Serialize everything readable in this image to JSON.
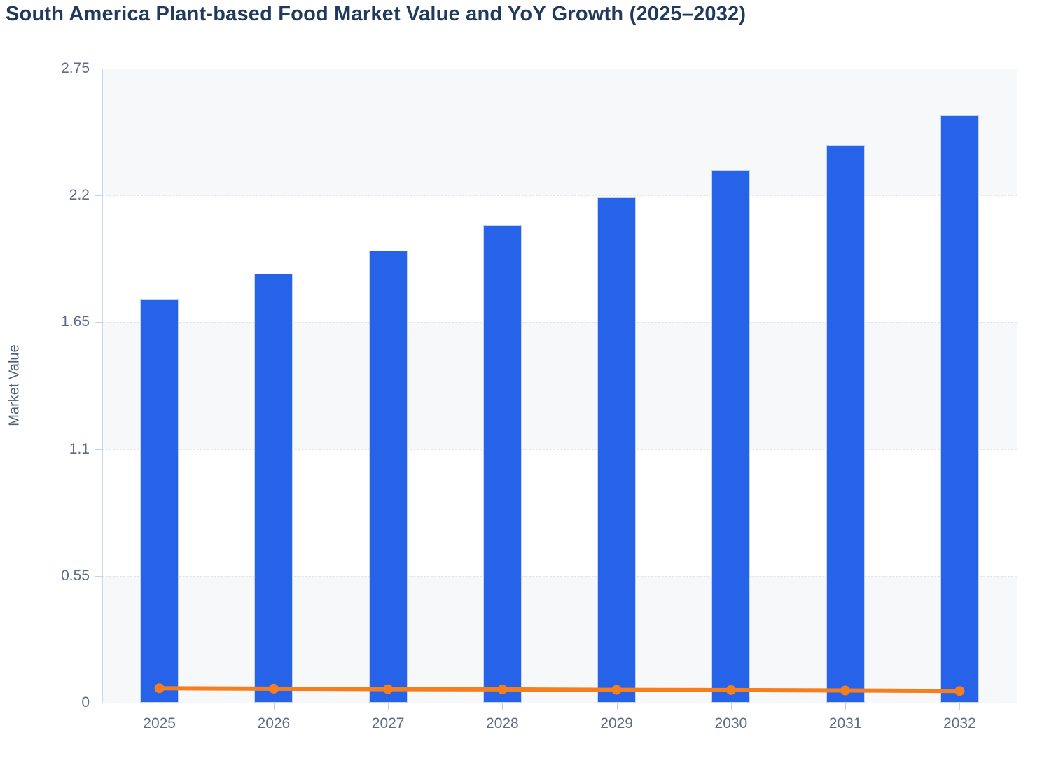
{
  "chart_data": {
    "type": "bar",
    "combo": "bar+line",
    "title": "South America Plant-based Food Market Value and YoY Growth (2025–2032)",
    "xlabel": "",
    "ylabel": "Market Value",
    "categories": [
      "2025",
      "2026",
      "2027",
      "2028",
      "2029",
      "2030",
      "2031",
      "2032"
    ],
    "series": [
      {
        "name": "Market Value",
        "type": "bar",
        "values": [
          1.75,
          1.86,
          1.96,
          2.07,
          2.19,
          2.31,
          2.42,
          2.55
        ]
      },
      {
        "name": "YoY Growth",
        "type": "line",
        "values": [
          0.063,
          0.061,
          0.059,
          0.058,
          0.056,
          0.055,
          0.053,
          0.051
        ]
      }
    ],
    "ylim": [
      0,
      2.75
    ],
    "y_ticks": [
      0,
      0.55,
      1.1,
      1.65,
      2.2,
      2.75
    ],
    "y_tick_labels": [
      "0",
      "0.55",
      "1.1",
      "1.65",
      "2.2",
      "2.75"
    ],
    "grid": "horizontal-dashed",
    "legend": "none",
    "split_area_alternating": true
  },
  "colors": {
    "bar_fill": "#2763e8",
    "bar_stroke": "#c6d4f4",
    "line_stroke": "#f67e1d",
    "marker_fill": "#f67e1d",
    "band_gray": "#f7f8fa",
    "band_white": "#ffffff",
    "gridline": "#e2e4e9",
    "axis_line": "#ccd6f0",
    "tick_line": "#c4cfe9",
    "title_text": "#1f3a5c",
    "tick_text": "#5d6c83",
    "axis_title_text": "#4e6078"
  }
}
